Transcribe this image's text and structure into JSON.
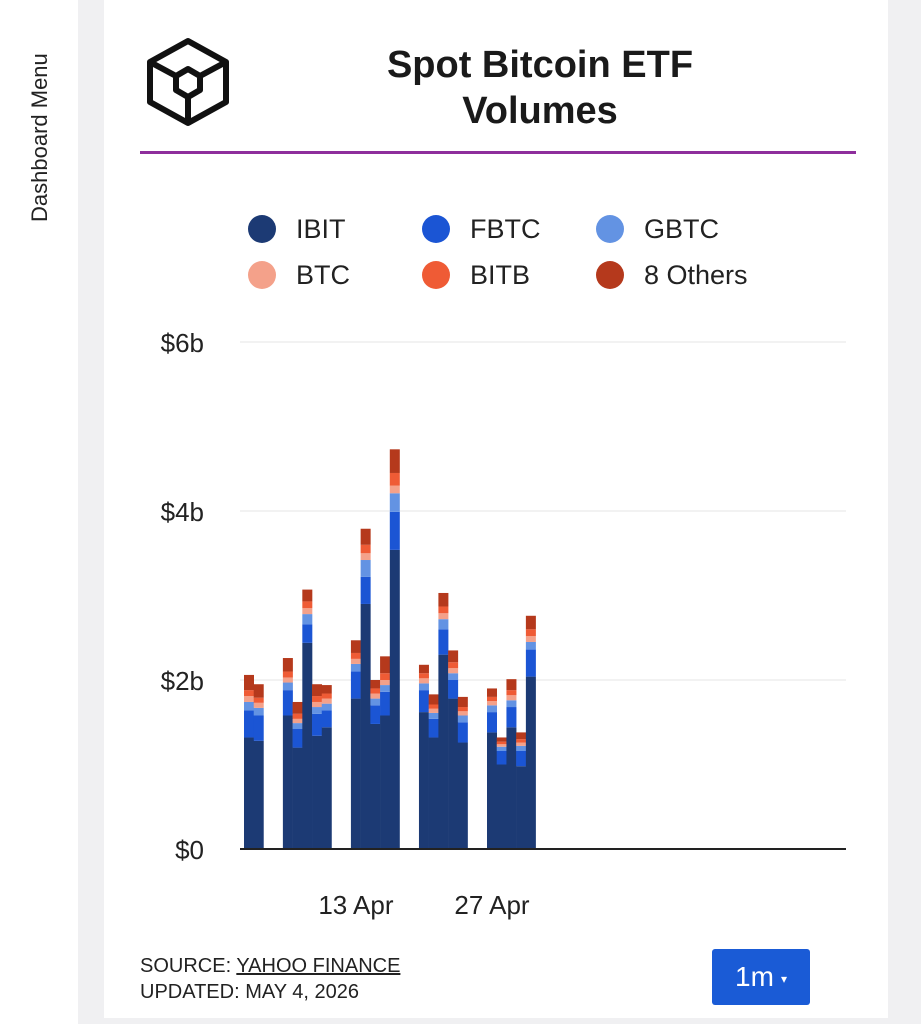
{
  "sidebar": {
    "label": "Dashboard Menu"
  },
  "card": {
    "title_line1": "Spot Bitcoin ETF",
    "title_line2": "Volumes",
    "source_label": "SOURCE: ",
    "source_link": "YAHOO FINANCE",
    "updated": "UPDATED: MAY 4, 2026",
    "range_button": "1m",
    "range_caret": "▾"
  },
  "colors": {
    "IBIT": "#1c3a74",
    "FBTC": "#1b55d4",
    "GBTC": "#6393e3",
    "BTC": "#f4a18a",
    "BITB": "#ef5b35",
    "8 Others": "#b5391c",
    "title_rule": "#8e2e9c",
    "button": "#1a5bd6"
  },
  "chart_data": {
    "type": "bar",
    "stacked": true,
    "title": "Spot Bitcoin ETF Volumes",
    "xlabel": "",
    "ylabel": "",
    "ylim": [
      0,
      6
    ],
    "y_unit": "billions USD",
    "y_ticks": [
      "$0",
      "$2b",
      "$4b",
      "$6b"
    ],
    "y_tick_values": [
      0,
      2,
      4,
      6
    ],
    "x_tick_labels": [
      {
        "label": "13 Apr",
        "date": "2026-04-13"
      },
      {
        "label": "27 Apr",
        "date": "2026-04-27"
      }
    ],
    "grid": true,
    "legend_position": "top",
    "x": [
      "2026-04-02",
      "2026-04-03",
      "2026-04-06",
      "2026-04-07",
      "2026-04-08",
      "2026-04-09",
      "2026-04-10",
      "2026-04-13",
      "2026-04-14",
      "2026-04-15",
      "2026-04-16",
      "2026-04-17",
      "2026-04-20",
      "2026-04-21",
      "2026-04-22",
      "2026-04-23",
      "2026-04-24",
      "2026-04-27",
      "2026-04-28",
      "2026-04-29",
      "2026-04-30",
      "2026-05-01"
    ],
    "series": [
      {
        "name": "IBIT",
        "values": [
          1.32,
          1.28,
          1.58,
          1.2,
          2.44,
          1.34,
          1.44,
          1.78,
          2.9,
          1.48,
          1.58,
          3.54,
          1.62,
          1.32,
          2.3,
          1.78,
          1.26,
          1.38,
          1.0,
          1.44,
          0.98,
          2.04
        ]
      },
      {
        "name": "FBTC",
        "values": [
          0.32,
          0.3,
          0.3,
          0.22,
          0.22,
          0.26,
          0.2,
          0.32,
          0.32,
          0.22,
          0.28,
          0.45,
          0.26,
          0.22,
          0.3,
          0.22,
          0.24,
          0.24,
          0.16,
          0.24,
          0.18,
          0.32
        ]
      },
      {
        "name": "GBTC",
        "values": [
          0.1,
          0.09,
          0.09,
          0.07,
          0.12,
          0.08,
          0.08,
          0.09,
          0.2,
          0.08,
          0.08,
          0.22,
          0.08,
          0.07,
          0.12,
          0.08,
          0.08,
          0.08,
          0.05,
          0.08,
          0.06,
          0.09
        ]
      },
      {
        "name": "BTC",
        "values": [
          0.07,
          0.06,
          0.06,
          0.05,
          0.07,
          0.06,
          0.06,
          0.06,
          0.08,
          0.06,
          0.06,
          0.09,
          0.06,
          0.05,
          0.07,
          0.06,
          0.05,
          0.05,
          0.03,
          0.06,
          0.04,
          0.07
        ]
      },
      {
        "name": "BITB",
        "values": [
          0.07,
          0.06,
          0.07,
          0.06,
          0.08,
          0.07,
          0.06,
          0.07,
          0.1,
          0.06,
          0.08,
          0.15,
          0.06,
          0.05,
          0.08,
          0.07,
          0.05,
          0.05,
          0.03,
          0.06,
          0.04,
          0.08
        ]
      },
      {
        "name": "8 Others",
        "values": [
          0.18,
          0.16,
          0.16,
          0.14,
          0.14,
          0.14,
          0.1,
          0.15,
          0.19,
          0.1,
          0.2,
          0.28,
          0.1,
          0.12,
          0.16,
          0.14,
          0.12,
          0.1,
          0.05,
          0.13,
          0.08,
          0.16
        ]
      }
    ]
  }
}
